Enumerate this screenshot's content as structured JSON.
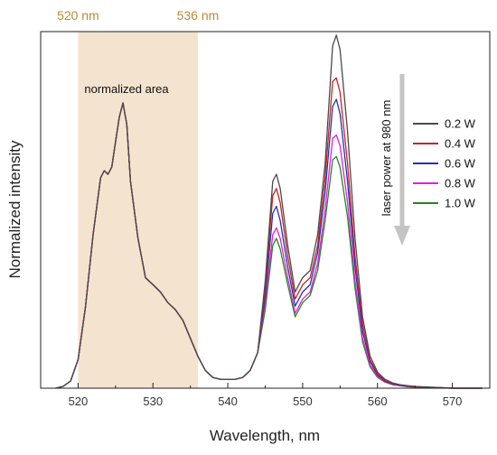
{
  "chart_data": {
    "type": "line",
    "title": "",
    "xlabel": "Wavelength, nm",
    "ylabel": "Normalized intensity",
    "xlim": [
      515,
      575
    ],
    "ylim": [
      0,
      1.0
    ],
    "x_ticks": [
      520,
      530,
      540,
      550,
      560,
      570
    ],
    "x_tick_labels": [
      "520",
      "530",
      "540",
      "550",
      "560",
      "570"
    ],
    "grid": false,
    "legend_position": "right",
    "highlight_region": {
      "x_start": 520,
      "x_end": 536,
      "color": "#f3e3cf"
    },
    "top_labels": [
      "520 nm",
      "536 nm"
    ],
    "annotations": {
      "region_label": "normalized area",
      "arrow_label": "laser power at 980 nm"
    },
    "x": [
      517,
      518,
      519,
      520,
      521,
      522,
      523,
      523.5,
      524,
      524.5,
      525,
      525.5,
      526,
      526.5,
      527,
      528,
      529,
      530,
      531,
      532,
      533,
      534,
      535,
      536,
      537,
      538,
      539,
      540,
      541,
      542,
      543,
      544,
      545,
      546,
      546.5,
      547,
      548,
      549,
      550,
      551,
      552,
      553,
      554,
      554.5,
      555,
      556,
      557,
      558,
      559,
      560,
      561,
      562,
      563,
      564,
      565,
      566,
      567,
      568,
      570,
      572,
      574
    ],
    "series": [
      {
        "name": "0.2 W",
        "color": "#4a4a4a",
        "values": [
          0.0,
          0.005,
          0.02,
          0.08,
          0.23,
          0.43,
          0.59,
          0.61,
          0.6,
          0.62,
          0.69,
          0.76,
          0.8,
          0.74,
          0.58,
          0.42,
          0.31,
          0.29,
          0.27,
          0.24,
          0.22,
          0.19,
          0.14,
          0.09,
          0.05,
          0.03,
          0.025,
          0.025,
          0.025,
          0.03,
          0.05,
          0.1,
          0.3,
          0.58,
          0.6,
          0.56,
          0.4,
          0.27,
          0.31,
          0.33,
          0.43,
          0.63,
          0.96,
          0.99,
          0.95,
          0.72,
          0.42,
          0.2,
          0.09,
          0.045,
          0.025,
          0.015,
          0.01,
          0.007,
          0.005,
          0.004,
          0.003,
          0.002,
          0.0,
          0.0,
          0.0
        ]
      },
      {
        "name": "0.4 W",
        "color": "#cc2222",
        "values": [
          0.0,
          0.005,
          0.02,
          0.08,
          0.23,
          0.43,
          0.59,
          0.61,
          0.6,
          0.62,
          0.69,
          0.76,
          0.8,
          0.74,
          0.58,
          0.42,
          0.31,
          0.29,
          0.27,
          0.24,
          0.22,
          0.19,
          0.14,
          0.09,
          0.05,
          0.03,
          0.025,
          0.025,
          0.025,
          0.03,
          0.05,
          0.1,
          0.28,
          0.54,
          0.56,
          0.52,
          0.37,
          0.25,
          0.29,
          0.31,
          0.4,
          0.59,
          0.86,
          0.87,
          0.83,
          0.63,
          0.37,
          0.18,
          0.08,
          0.04,
          0.022,
          0.013,
          0.009,
          0.006,
          0.004,
          0.003,
          0.002,
          0.002,
          0.0,
          0.0,
          0.0
        ]
      },
      {
        "name": "0.6 W",
        "color": "#2233aa",
        "values": [
          0.0,
          0.005,
          0.02,
          0.08,
          0.23,
          0.43,
          0.59,
          0.61,
          0.6,
          0.62,
          0.69,
          0.76,
          0.8,
          0.74,
          0.58,
          0.42,
          0.31,
          0.29,
          0.27,
          0.24,
          0.22,
          0.19,
          0.14,
          0.09,
          0.05,
          0.03,
          0.025,
          0.025,
          0.025,
          0.03,
          0.05,
          0.1,
          0.26,
          0.49,
          0.51,
          0.47,
          0.34,
          0.23,
          0.27,
          0.29,
          0.38,
          0.55,
          0.79,
          0.81,
          0.77,
          0.58,
          0.34,
          0.16,
          0.075,
          0.037,
          0.02,
          0.012,
          0.008,
          0.005,
          0.004,
          0.003,
          0.002,
          0.001,
          0.0,
          0.0,
          0.0
        ]
      },
      {
        "name": "0.8 W",
        "color": "#e020e0",
        "values": [
          0.0,
          0.005,
          0.02,
          0.08,
          0.23,
          0.43,
          0.59,
          0.61,
          0.6,
          0.62,
          0.69,
          0.76,
          0.8,
          0.74,
          0.58,
          0.42,
          0.31,
          0.29,
          0.27,
          0.24,
          0.22,
          0.19,
          0.14,
          0.09,
          0.05,
          0.03,
          0.025,
          0.025,
          0.025,
          0.03,
          0.05,
          0.1,
          0.24,
          0.43,
          0.45,
          0.42,
          0.31,
          0.21,
          0.25,
          0.27,
          0.35,
          0.5,
          0.7,
          0.71,
          0.68,
          0.52,
          0.3,
          0.14,
          0.065,
          0.033,
          0.018,
          0.011,
          0.007,
          0.005,
          0.003,
          0.002,
          0.002,
          0.001,
          0.0,
          0.0,
          0.0
        ]
      },
      {
        "name": "1.0 W",
        "color": "#228822",
        "values": [
          0.0,
          0.005,
          0.02,
          0.08,
          0.23,
          0.43,
          0.59,
          0.61,
          0.6,
          0.62,
          0.69,
          0.76,
          0.8,
          0.74,
          0.58,
          0.42,
          0.31,
          0.29,
          0.27,
          0.24,
          0.22,
          0.19,
          0.14,
          0.09,
          0.05,
          0.03,
          0.025,
          0.025,
          0.025,
          0.03,
          0.05,
          0.1,
          0.22,
          0.4,
          0.42,
          0.39,
          0.29,
          0.2,
          0.24,
          0.26,
          0.33,
          0.47,
          0.64,
          0.65,
          0.62,
          0.48,
          0.28,
          0.13,
          0.06,
          0.03,
          0.017,
          0.01,
          0.007,
          0.004,
          0.003,
          0.002,
          0.001,
          0.001,
          0.0,
          0.0,
          0.0
        ]
      }
    ]
  }
}
